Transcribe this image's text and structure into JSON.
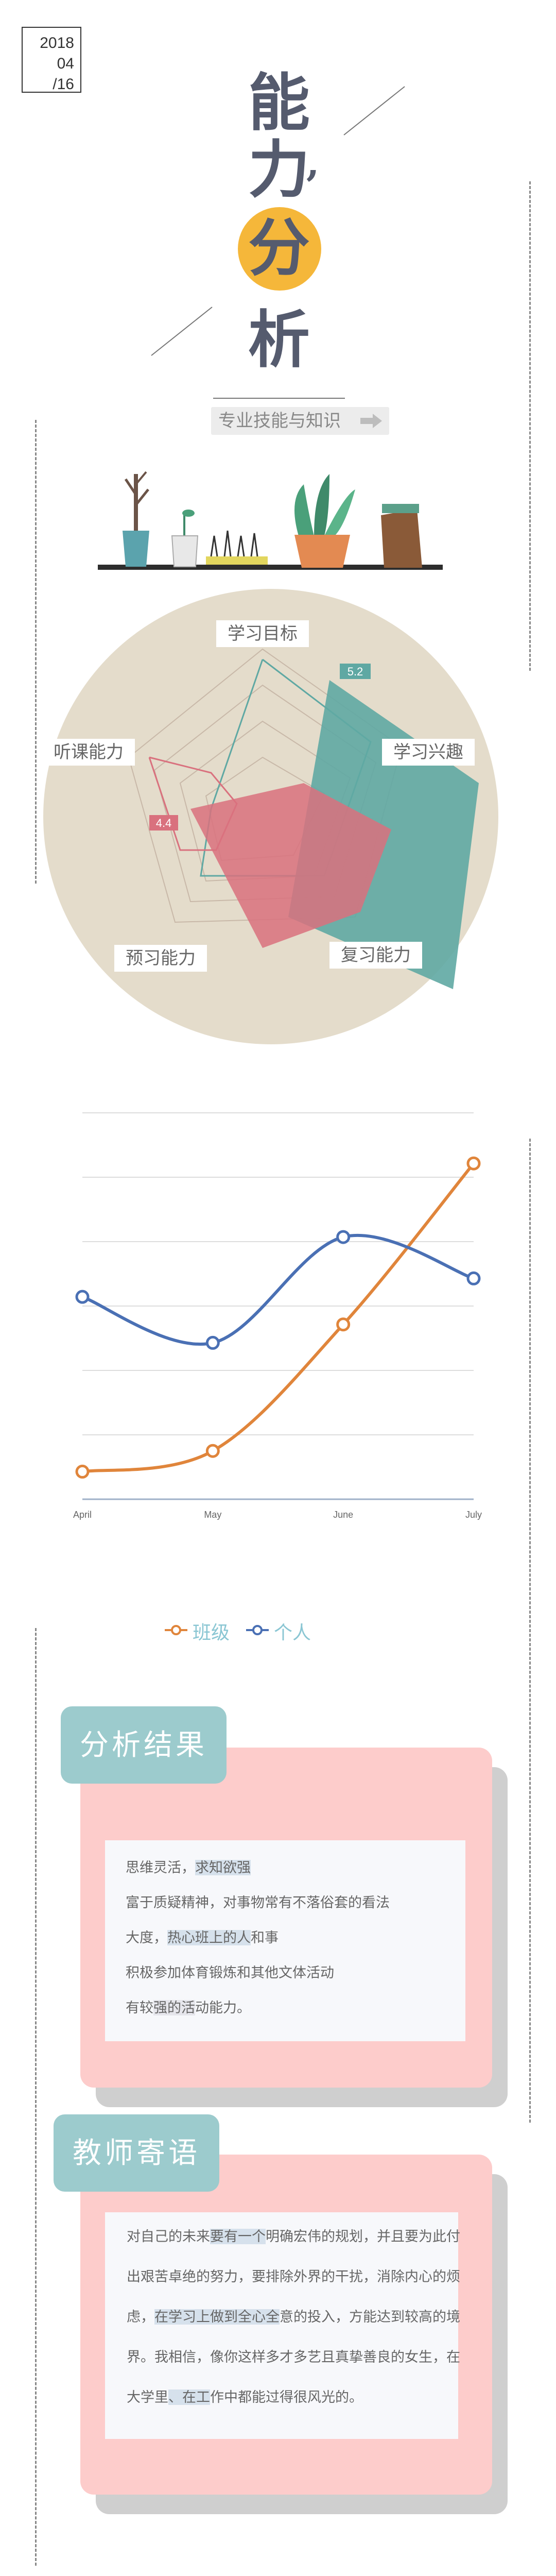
{
  "date": {
    "year": "2018",
    "month": "04",
    "day": "/16"
  },
  "title": {
    "char1": "能",
    "char2": "力",
    "comma": "’",
    "char3": "分",
    "char4": "析"
  },
  "subtitle": {
    "text": "专业技能与知识",
    "icon": "arrow-right-icon"
  },
  "illustration": {
    "name": "potted-plants-shelf"
  },
  "radar": {
    "labels": {
      "top": "学习目标",
      "right": "学习兴趣",
      "bottom_right": "复习能力",
      "bottom_left": "预习能力",
      "left": "听课能力"
    },
    "badge_teal": "5.2",
    "badge_red": "4.4",
    "colors": {
      "background": "#e4dccb",
      "teal": "#5fa8a3",
      "red": "#d9717e"
    }
  },
  "chart_data": {
    "type": "line",
    "categories": [
      "April",
      "May",
      "June",
      "July"
    ],
    "series": [
      {
        "name": "班级",
        "color": "#e0853b",
        "values": [
          0.6,
          1.05,
          3.8,
          7.3
        ]
      },
      {
        "name": "个人",
        "color": "#4a70b4",
        "values": [
          4.4,
          3.4,
          5.7,
          4.8
        ]
      }
    ],
    "ylim": [
      0,
      8.4
    ],
    "grid": true,
    "legend": "bottom-center"
  },
  "analysis": {
    "title": "分析结果",
    "lines": [
      [
        "思维灵活，",
        "求知欲强"
      ],
      [
        "富于质疑精神，对事物常有不落俗套的看法"
      ],
      [
        "大度，",
        "热心班上的人",
        "和事"
      ],
      [
        "积极参加体育锻炼和其他文体活动"
      ],
      [
        "有较",
        "强的活",
        "动能力。"
      ]
    ]
  },
  "teacher": {
    "title": "教师寄语",
    "lines": [
      [
        "对自己的未来",
        "要有一个",
        "明确宏伟的规划，并且要为此付"
      ],
      [
        "出艰苦卓绝的努力，要排除外界的干扰，消除内心的烦"
      ],
      [
        "虑，",
        "在学习上做到全心全",
        "意的投入，方能达到较高的境"
      ],
      [
        "界。我相信，像你这样多才多艺且真挚善良的女生，在"
      ],
      [
        "大学里",
        "、在工",
        "作中都能过得很风光的。"
      ]
    ]
  }
}
